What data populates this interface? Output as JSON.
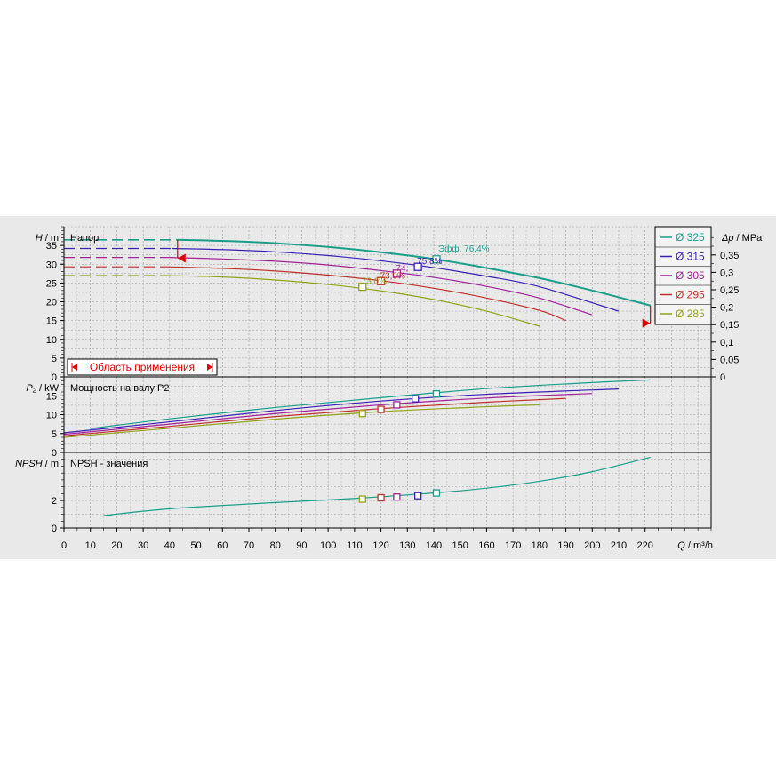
{
  "colors": {
    "background": "#e9e9e9",
    "axis": "#000000",
    "grid": "#9a9a9a",
    "area_marker": "#e00000"
  },
  "chart_data": [
    {
      "type": "line",
      "panel": "head",
      "ylabel_sym": "H",
      "ylabel_unit": " / m",
      "title": "Напор",
      "ylim": [
        0,
        40
      ],
      "yticks": [
        0,
        5,
        10,
        15,
        20,
        25,
        30,
        35
      ],
      "right_axis": {
        "label_sym": "Δp",
        "label_unit": " / MPa",
        "ticks": [
          "0",
          "0,05",
          "0,1",
          "0,15",
          "0,2",
          "0,25",
          "0,3",
          "0,35"
        ]
      },
      "grid": true,
      "legend_position": "top-right",
      "area_label": "Область применения",
      "series": [
        {
          "name": "Ø 325",
          "color": "#1a9e8a",
          "dashed_x": [
            0,
            43
          ],
          "x": [
            43,
            60,
            80,
            100,
            120,
            140,
            160,
            180,
            200,
            222
          ],
          "y": [
            36.5,
            36.2,
            35.6,
            34.6,
            33.2,
            31.4,
            29.0,
            26.3,
            23.0,
            19.0
          ]
        },
        {
          "name": "Ø 315",
          "color": "#3c1fb4",
          "dashed_x": [
            0,
            41
          ],
          "x": [
            41,
            60,
            80,
            100,
            120,
            140,
            160,
            180,
            210
          ],
          "y": [
            34.2,
            33.9,
            33.3,
            32.3,
            30.9,
            29.1,
            26.8,
            24.0,
            17.5
          ]
        },
        {
          "name": "Ø 305",
          "color": "#a2229a",
          "dashed_x": [
            0,
            40
          ],
          "x": [
            40,
            60,
            80,
            100,
            120,
            140,
            160,
            180,
            200
          ],
          "y": [
            31.8,
            31.4,
            30.8,
            29.8,
            28.3,
            26.5,
            24.1,
            21.0,
            16.5
          ]
        },
        {
          "name": "Ø 295",
          "color": "#c0302a",
          "dashed_x": [
            0,
            39
          ],
          "x": [
            39,
            60,
            80,
            100,
            120,
            140,
            160,
            180,
            190
          ],
          "y": [
            29.3,
            28.9,
            28.2,
            27.1,
            25.6,
            23.6,
            21.0,
            17.7,
            15.0
          ]
        },
        {
          "name": "Ø 285",
          "color": "#92a31a",
          "dashed_x": [
            0,
            38
          ],
          "x": [
            38,
            60,
            80,
            100,
            120,
            140,
            160,
            180
          ],
          "y": [
            27.0,
            26.6,
            25.8,
            24.6,
            22.9,
            20.6,
            17.5,
            13.5
          ]
        }
      ],
      "bep": [
        {
          "x": 141,
          "y": 31.3,
          "label": "Эфф.  76,4%",
          "series": 0
        },
        {
          "x": 134,
          "y": 29.3,
          "label": "75,8%",
          "series": 1
        },
        {
          "x": 126,
          "y": 27.5,
          "label": "74,",
          "series": 2
        },
        {
          "x": 120,
          "y": 25.5,
          "label": "73,9%",
          "series": 3
        },
        {
          "x": 113,
          "y": 24.0,
          "label": "73,0%",
          "series": 4
        }
      ],
      "area_limits": {
        "min": {
          "x": 43,
          "y": 31.6
        },
        "max": {
          "x": 222,
          "y": 14.3
        }
      }
    },
    {
      "type": "line",
      "panel": "power",
      "ylabel_sym": "P₂",
      "ylabel_unit": " / kW",
      "title": "Мощность на валу P2",
      "ylim": [
        0,
        20
      ],
      "yticks": [
        0,
        5,
        10,
        15
      ],
      "grid": true,
      "series": [
        {
          "name": "Ø 325",
          "color": "#1a9e8a",
          "x": [
            10,
            40,
            80,
            120,
            160,
            200,
            222
          ],
          "y": [
            6.3,
            8.9,
            11.9,
            14.5,
            16.9,
            18.5,
            19.2
          ]
        },
        {
          "name": "Ø 315",
          "color": "#3c1fb4",
          "x": [
            0,
            40,
            80,
            120,
            160,
            210
          ],
          "y": [
            5.2,
            8.1,
            11.1,
            13.6,
            15.4,
            16.8
          ]
        },
        {
          "name": "Ø 305",
          "color": "#a2229a",
          "x": [
            0,
            40,
            80,
            120,
            160,
            200
          ],
          "y": [
            4.8,
            7.5,
            10.3,
            12.6,
            14.4,
            15.6
          ]
        },
        {
          "name": "Ø 295",
          "color": "#c0302a",
          "x": [
            0,
            40,
            80,
            120,
            160,
            190
          ],
          "y": [
            4.4,
            6.9,
            9.5,
            11.6,
            13.3,
            14.3
          ]
        },
        {
          "name": "Ø 285",
          "color": "#92a31a",
          "x": [
            0,
            40,
            80,
            120,
            160,
            180
          ],
          "y": [
            4.0,
            6.4,
            8.8,
            10.8,
            12.1,
            12.6
          ]
        }
      ],
      "markers": [
        {
          "x": 141,
          "y": 15.5,
          "series": 0
        },
        {
          "x": 133,
          "y": 14.2,
          "series": 1
        },
        {
          "x": 126,
          "y": 12.6,
          "series": 2
        },
        {
          "x": 120,
          "y": 11.4,
          "series": 3
        },
        {
          "x": 113,
          "y": 10.3,
          "series": 4
        }
      ]
    },
    {
      "type": "line",
      "panel": "npsh",
      "ylabel_sym": "NPSH",
      "ylabel_unit": " / m",
      "title": "NPSH - значения",
      "ylim": [
        0,
        5.5
      ],
      "yticks": [
        0,
        2
      ],
      "grid": true,
      "xlabel_sym": "Q",
      "xlabel_unit": " / m³/h",
      "xlim": [
        0,
        245
      ],
      "xticks": [
        0,
        10,
        20,
        30,
        40,
        50,
        60,
        70,
        80,
        90,
        100,
        110,
        120,
        130,
        140,
        150,
        160,
        170,
        180,
        190,
        200,
        210,
        220
      ],
      "series": [
        {
          "name": "Ø 325",
          "color": "#1a9e8a",
          "x": [
            15,
            40,
            80,
            110,
            140,
            160,
            180,
            200,
            222
          ],
          "y": [
            0.9,
            1.4,
            1.85,
            2.15,
            2.55,
            2.9,
            3.4,
            4.1,
            5.15
          ]
        }
      ],
      "markers": [
        {
          "x": 141,
          "y": 2.55,
          "series": 0
        },
        {
          "x": 134,
          "y": 2.35,
          "series": 1
        },
        {
          "x": 126,
          "y": 2.25,
          "series": 2
        },
        {
          "x": 120,
          "y": 2.2,
          "series": 3
        },
        {
          "x": 113,
          "y": 2.1,
          "series": 4
        }
      ]
    }
  ]
}
